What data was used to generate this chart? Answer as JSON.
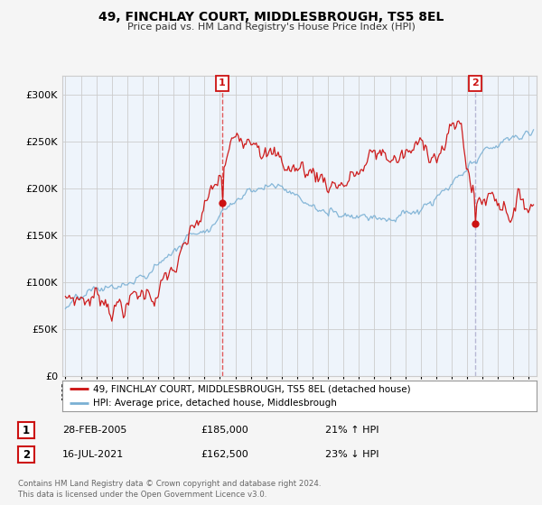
{
  "title": "49, FINCHLAY COURT, MIDDLESBROUGH, TS5 8EL",
  "subtitle": "Price paid vs. HM Land Registry's House Price Index (HPI)",
  "background_color": "#f5f5f5",
  "plot_bg_color": "#eef4fb",
  "legend_label_red": "49, FINCHLAY COURT, MIDDLESBROUGH, TS5 8EL (detached house)",
  "legend_label_blue": "HPI: Average price, detached house, Middlesbrough",
  "table_rows": [
    {
      "num": "1",
      "date": "28-FEB-2005",
      "price": "£185,000",
      "pct": "21% ↑ HPI"
    },
    {
      "num": "2",
      "date": "16-JUL-2021",
      "price": "£162,500",
      "pct": "23% ↓ HPI"
    }
  ],
  "footnote": "Contains HM Land Registry data © Crown copyright and database right 2024.\nThis data is licensed under the Open Government Licence v3.0.",
  "vline1_x": 2005.15,
  "vline2_x": 2021.54,
  "marker1_y_red": 185000,
  "marker2_y_red": 162500,
  "ylim": [
    0,
    320000
  ],
  "xlim_start": 1994.8,
  "xlim_end": 2025.5,
  "red_color": "#cc1111",
  "blue_color": "#7ab0d4",
  "vline1_color": "#dd3333",
  "vline2_color": "#aaaacc"
}
